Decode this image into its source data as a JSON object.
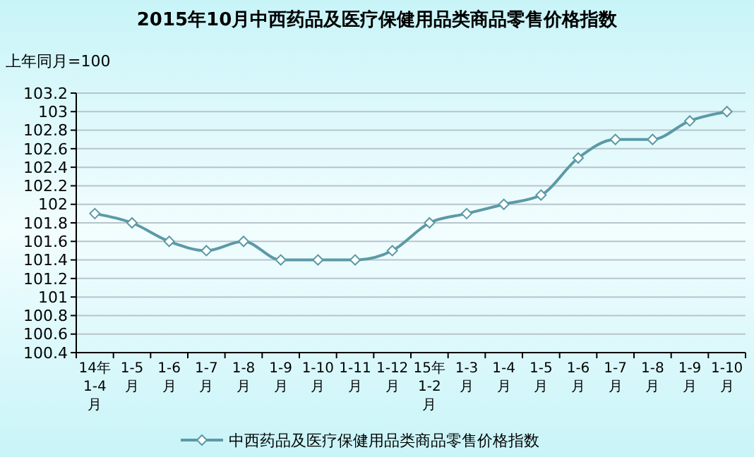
{
  "chart_data": {
    "type": "line",
    "title": "2015年10月中西药品及医疗保健用品类商品零售价格指数",
    "ylabel": "上年同月=100",
    "categories": [
      "14年\n1-4\n月",
      "1-5\n月",
      "1-6\n月",
      "1-7\n月",
      "1-8\n月",
      "1-9\n月",
      "1-10\n月",
      "1-11\n月",
      "1-12\n月",
      "15年\n1-2\n月",
      "1-3\n月",
      "1-4\n月",
      "1-5\n月",
      "1-6\n月",
      "1-7\n月",
      "1-8\n月",
      "1-9\n月",
      "1-10\n月"
    ],
    "series": [
      {
        "name": "中西药品及医疗保健用品类商品零售价格指数",
        "color": "#5b9aa6",
        "values": [
          101.9,
          101.8,
          101.6,
          101.5,
          101.6,
          101.4,
          101.4,
          101.4,
          101.5,
          101.8,
          101.9,
          102.0,
          102.1,
          102.5,
          102.7,
          102.7,
          102.9,
          103.0
        ]
      }
    ],
    "ylim": [
      100.4,
      103.2
    ],
    "yticks": [
      100.4,
      100.6,
      100.8,
      101,
      101.2,
      101.4,
      101.6,
      101.8,
      102,
      102.2,
      102.4,
      102.6,
      102.8,
      103,
      103.2
    ],
    "grid": "y",
    "legend": "bottom",
    "marker": "diamond",
    "line_style": "solid"
  }
}
